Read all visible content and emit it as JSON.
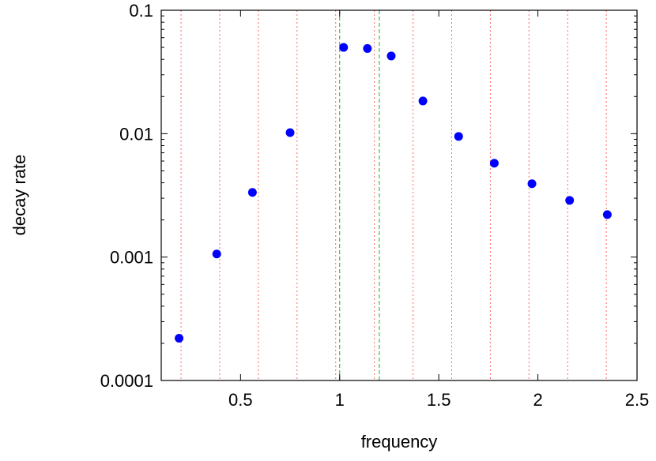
{
  "chart_data": {
    "type": "scatter",
    "title": "",
    "xlabel": "frequency",
    "ylabel": "decay rate",
    "xlim": [
      0.1,
      2.5
    ],
    "ylim": [
      0.0001,
      0.1
    ],
    "yscale": "log",
    "grid": false,
    "x_ticks": [
      0.5,
      1,
      1.5,
      2,
      2.5
    ],
    "x_tick_labels": [
      "0.5",
      "1",
      "1.5",
      "2",
      "2.5"
    ],
    "y_ticks": [
      0.0001,
      0.001,
      0.01,
      0.1
    ],
    "y_tick_labels": [
      "0.0001",
      "0.001",
      "0.01",
      "0.1"
    ],
    "points": {
      "color": "#0000ff",
      "x": [
        0.19,
        0.38,
        0.56,
        0.75,
        1.02,
        1.14,
        1.26,
        1.42,
        1.6,
        1.78,
        1.97,
        2.16,
        2.35
      ],
      "y": [
        0.00022,
        0.00106,
        0.00334,
        0.0102,
        0.05,
        0.049,
        0.0426,
        0.0184,
        0.0095,
        0.00576,
        0.00393,
        0.00288,
        0.00221
      ]
    },
    "vertical_lines_red": {
      "color": "#ff6666",
      "style": "dotted",
      "x": [
        0.2,
        0.395,
        0.59,
        0.785,
        0.98,
        1.175,
        1.37,
        1.565,
        1.76,
        1.955,
        2.15,
        2.345
      ]
    },
    "vertical_lines_green": {
      "color": "#22aa22",
      "style": "dashed",
      "x": [
        1.0,
        1.2
      ]
    }
  }
}
